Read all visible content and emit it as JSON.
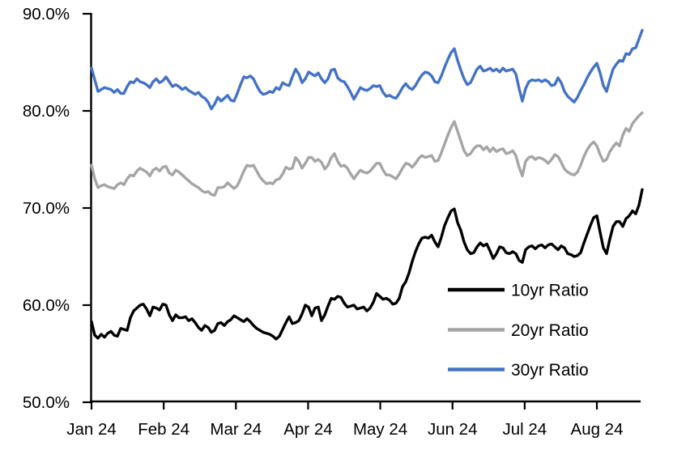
{
  "chart_data": {
    "type": "line",
    "title": "",
    "xlabel": "",
    "ylabel": "",
    "grid": false,
    "background": "#ffffff",
    "axis_color": "#000000",
    "x_axis": {
      "tick_labels": [
        "Jan 24",
        "Feb 24",
        "Mar 24",
        "Apr 24",
        "May 24",
        "Jun 24",
        "Jul 24",
        "Aug 24"
      ],
      "tick_positions_months": [
        0,
        1,
        2,
        3,
        4,
        5,
        6,
        7
      ],
      "xlim_months": [
        0,
        7.628
      ],
      "note": "x axis is time from Jan 2024 to late Aug 2024; series points are evenly spaced across xlim"
    },
    "y_axis": {
      "tick_labels": [
        "50.0%",
        "60.0%",
        "70.0%",
        "80.0%",
        "90.0%"
      ],
      "tick_values": [
        50,
        60,
        70,
        80,
        90
      ],
      "ylim": [
        50,
        90
      ],
      "unit": "percent"
    },
    "legend": {
      "position": "inside-lower-right",
      "entries": [
        "10yr Ratio",
        "20yr Ratio",
        "30yr Ratio"
      ]
    },
    "series": [
      {
        "name": "10yr Ratio",
        "color": "#000000",
        "values": [
          58.3,
          56.9,
          56.6,
          57.0,
          56.7,
          57.1,
          57.3,
          56.9,
          56.8,
          57.6,
          57.5,
          57.4,
          58.7,
          59.4,
          59.7,
          60.0,
          60.1,
          59.6,
          58.9,
          59.8,
          59.7,
          59.5,
          60.1,
          60.0,
          59.0,
          58.4,
          59.0,
          58.7,
          58.7,
          58.8,
          58.4,
          58.6,
          58.2,
          57.7,
          57.4,
          57.9,
          57.7,
          57.2,
          57.4,
          58.1,
          58.2,
          57.9,
          58.3,
          58.5,
          58.9,
          58.7,
          58.5,
          58.3,
          58.6,
          58.3,
          57.9,
          57.6,
          57.4,
          57.2,
          57.1,
          57.0,
          56.8,
          56.5,
          56.8,
          57.5,
          58.2,
          58.8,
          58.1,
          58.2,
          58.4,
          59.1,
          60.0,
          59.8,
          58.9,
          59.7,
          59.8,
          58.4,
          59.0,
          59.9,
          60.7,
          60.6,
          60.9,
          60.8,
          60.2,
          59.8,
          59.9,
          60.0,
          59.6,
          59.7,
          59.8,
          59.4,
          59.7,
          60.3,
          61.2,
          60.9,
          60.6,
          60.7,
          60.5,
          60.1,
          60.2,
          60.7,
          61.9,
          62.4,
          63.3,
          64.5,
          65.5,
          66.3,
          66.9,
          67.0,
          66.9,
          67.2,
          66.5,
          66.0,
          67.0,
          68.2,
          69.0,
          69.7,
          69.9,
          68.5,
          67.7,
          66.5,
          65.7,
          65.3,
          65.4,
          66.0,
          66.4,
          66.1,
          66.3,
          65.6,
          64.8,
          65.3,
          66.0,
          65.9,
          65.4,
          65.3,
          65.5,
          65.3,
          64.6,
          64.4,
          65.7,
          66.0,
          66.1,
          65.8,
          66.1,
          66.2,
          65.9,
          66.2,
          66.3,
          66.0,
          65.7,
          66.1,
          65.9,
          65.3,
          65.2,
          65.0,
          65.1,
          65.4,
          66.4,
          67.3,
          68.2,
          69.0,
          69.2,
          67.5,
          65.9,
          65.3,
          66.8,
          68.1,
          68.6,
          68.6,
          68.1,
          68.9,
          69.2,
          69.7,
          69.4,
          70.3,
          71.9
        ]
      },
      {
        "name": "20yr Ratio",
        "color": "#A5A5A5",
        "values": [
          74.4,
          73.0,
          72.1,
          72.3,
          72.4,
          72.2,
          72.1,
          72.0,
          72.4,
          72.6,
          72.4,
          73.0,
          73.4,
          73.3,
          73.8,
          74.1,
          73.9,
          73.7,
          73.3,
          73.9,
          74.1,
          73.8,
          74.2,
          74.3,
          73.6,
          73.4,
          73.9,
          73.7,
          73.4,
          73.1,
          72.8,
          72.5,
          72.3,
          72.1,
          71.8,
          71.6,
          71.7,
          71.4,
          71.3,
          72.1,
          72.1,
          72.2,
          72.6,
          72.3,
          72.0,
          72.3,
          73.0,
          73.8,
          74.4,
          74.3,
          74.4,
          73.8,
          73.2,
          72.8,
          72.5,
          72.6,
          72.5,
          72.9,
          73.0,
          73.5,
          74.2,
          74.0,
          74.1,
          75.2,
          74.8,
          74.1,
          74.6,
          75.2,
          75.2,
          74.8,
          75.0,
          74.7,
          74.0,
          74.4,
          75.2,
          75.6,
          74.8,
          74.3,
          74.4,
          74.1,
          73.5,
          73.0,
          73.5,
          73.9,
          73.7,
          73.6,
          73.8,
          74.2,
          74.6,
          74.6,
          73.9,
          73.4,
          73.4,
          73.2,
          73.0,
          73.5,
          74.1,
          74.6,
          74.5,
          74.2,
          74.6,
          75.1,
          75.4,
          75.2,
          75.3,
          75.4,
          74.8,
          74.9,
          75.7,
          76.6,
          77.5,
          78.3,
          78.9,
          77.9,
          76.9,
          75.9,
          75.4,
          75.6,
          76.1,
          76.4,
          76.4,
          76.0,
          76.3,
          75.8,
          76.2,
          75.8,
          76.0,
          76.1,
          75.6,
          75.7,
          75.9,
          75.4,
          74.2,
          73.3,
          74.8,
          75.2,
          75.3,
          75.0,
          75.2,
          75.1,
          74.9,
          74.6,
          75.0,
          75.5,
          75.3,
          74.7,
          74.0,
          73.7,
          73.5,
          73.4,
          73.7,
          74.4,
          75.3,
          76.0,
          76.5,
          76.8,
          76.4,
          75.5,
          74.8,
          75.0,
          75.8,
          76.3,
          76.7,
          76.4,
          77.5,
          78.2,
          77.9,
          78.7,
          79.1,
          79.5,
          79.8
        ]
      },
      {
        "name": "30yr Ratio",
        "color": "#4472C4",
        "values": [
          84.4,
          83.2,
          82.0,
          82.2,
          82.4,
          82.3,
          82.2,
          81.9,
          82.2,
          81.8,
          81.8,
          82.5,
          83.0,
          82.9,
          83.3,
          83.0,
          82.9,
          82.7,
          82.4,
          83.0,
          83.3,
          82.9,
          83.1,
          83.5,
          83.0,
          82.5,
          82.7,
          82.5,
          82.2,
          82.4,
          82.1,
          81.9,
          81.7,
          81.9,
          81.5,
          81.3,
          80.9,
          80.2,
          80.7,
          81.4,
          81.0,
          81.3,
          81.6,
          81.1,
          81.0,
          81.8,
          82.7,
          83.5,
          83.4,
          83.6,
          83.3,
          82.6,
          82.0,
          81.7,
          81.8,
          82.0,
          81.9,
          82.4,
          82.2,
          82.9,
          82.7,
          82.6,
          83.5,
          84.3,
          83.8,
          82.9,
          83.3,
          84.0,
          83.8,
          83.6,
          83.9,
          83.3,
          82.9,
          83.3,
          84.2,
          84.3,
          83.4,
          83.1,
          83.0,
          82.5,
          81.9,
          81.2,
          81.8,
          82.4,
          82.2,
          82.1,
          82.3,
          82.6,
          82.5,
          82.6,
          81.9,
          81.5,
          81.6,
          81.4,
          81.3,
          81.8,
          82.4,
          82.8,
          82.4,
          82.2,
          82.6,
          83.2,
          83.7,
          84.0,
          83.9,
          83.6,
          83.0,
          82.9,
          83.6,
          84.5,
          85.3,
          86.0,
          86.4,
          85.2,
          84.2,
          83.3,
          82.7,
          82.9,
          83.6,
          84.3,
          84.6,
          84.1,
          84.2,
          84.4,
          84.1,
          84.3,
          84.0,
          84.4,
          84.1,
          84.2,
          84.3,
          83.8,
          82.3,
          81.0,
          82.3,
          83.0,
          83.2,
          83.1,
          83.2,
          83.0,
          83.2,
          83.0,
          82.6,
          82.7,
          83.4,
          82.9,
          82.0,
          81.5,
          81.2,
          80.9,
          81.4,
          82.1,
          82.7,
          83.4,
          84.0,
          84.5,
          84.9,
          83.9,
          82.6,
          82.0,
          83.2,
          84.3,
          84.8,
          85.2,
          85.1,
          85.9,
          85.8,
          86.4,
          86.5,
          87.4,
          88.3
        ]
      }
    ]
  }
}
